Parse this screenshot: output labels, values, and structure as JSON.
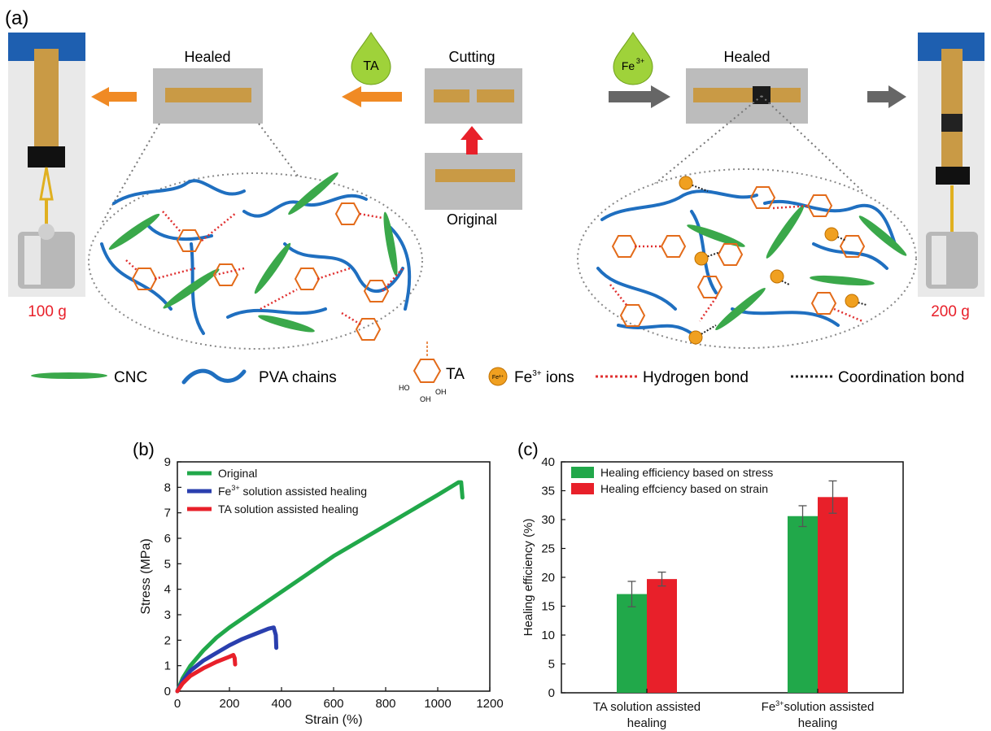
{
  "panels": {
    "a": {
      "label": "(a)",
      "healed_ta": "Healed",
      "cutting": "Cutting",
      "healed_fe": "Healed",
      "original": "Original",
      "drop_ta": "TA",
      "drop_fe": "Fe",
      "drop_fe_sup": "3+",
      "weight_left": "100 g",
      "weight_right": "200 g",
      "fe_ion_label": "Fe³⁺"
    },
    "legend": {
      "cnc": "CNC",
      "pva": "PVA chains",
      "ta": "TA",
      "fe_ions_base": "Fe",
      "fe_ions_sup": "3+",
      "fe_ions_rest": " ions",
      "hbond": "Hydrogen bond",
      "coord": "Coordination bond",
      "oh": "OH",
      "ho": "HO"
    },
    "b": {
      "label": "(b)"
    },
    "c": {
      "label": "(c)"
    }
  },
  "colors": {
    "green": "#21a84a",
    "blue": "#2a3fae",
    "red": "#e8202a",
    "orange_arrow": "#f08a24",
    "grey_arrow": "#666666",
    "red_arrow": "#e8202a",
    "pva_blue": "#1f6fc0",
    "cnc_green": "#3aa84a",
    "ta_orange": "#e36b1a",
    "hbond_red": "#e03030",
    "strip": "#c99a45",
    "photo_bg": "#bcbcbc"
  },
  "chart_data": [
    {
      "type": "line",
      "panel": "b",
      "xlabel": "Strain (%)",
      "ylabel": "Stress (MPa)",
      "xlim": [
        0,
        1200
      ],
      "ylim": [
        0,
        9
      ],
      "xticks": [
        0,
        200,
        400,
        600,
        800,
        1000,
        1200
      ],
      "yticks": [
        0,
        1,
        2,
        3,
        4,
        5,
        6,
        7,
        8,
        9
      ],
      "legend_position": "top-left",
      "series": [
        {
          "name": "Original",
          "color": "#21a84a",
          "x": [
            0,
            20,
            50,
            100,
            150,
            200,
            300,
            400,
            500,
            600,
            700,
            800,
            900,
            1000,
            1080,
            1090,
            1095
          ],
          "y": [
            0,
            0.5,
            1.0,
            1.6,
            2.1,
            2.5,
            3.2,
            3.9,
            4.6,
            5.3,
            5.9,
            6.5,
            7.1,
            7.7,
            8.2,
            8.2,
            7.6
          ]
        },
        {
          "name": "Fe3+ solution assisted healing",
          "label_base": "Fe",
          "label_sup": "3+",
          "label_rest": " solution assisted healing",
          "color": "#2a3fae",
          "x": [
            0,
            20,
            50,
            100,
            150,
            200,
            250,
            300,
            350,
            370,
            378,
            380
          ],
          "y": [
            0,
            0.4,
            0.8,
            1.2,
            1.5,
            1.8,
            2.05,
            2.25,
            2.45,
            2.5,
            2.2,
            1.7
          ]
        },
        {
          "name": "TA solution assisted healing",
          "color": "#e8202a",
          "x": [
            0,
            20,
            50,
            100,
            150,
            200,
            215,
            220,
            222
          ],
          "y": [
            0,
            0.3,
            0.6,
            0.9,
            1.15,
            1.35,
            1.42,
            1.3,
            1.05
          ]
        }
      ]
    },
    {
      "type": "bar",
      "panel": "c",
      "ylabel": "Healing efficiency (%)",
      "ylim": [
        0,
        40
      ],
      "yticks": [
        0,
        5,
        10,
        15,
        20,
        25,
        30,
        35,
        40
      ],
      "categories": [
        {
          "line1": "TA solution assisted",
          "line2": "healing"
        },
        {
          "line1_base": "Fe",
          "line1_sup": "3+",
          "line1_rest": "solution assisted",
          "line2": "healing"
        }
      ],
      "legend_position": "top-left",
      "series": [
        {
          "name": "Healing efficiency based on stress",
          "color": "#21a84a",
          "values": [
            17.1,
            30.6
          ],
          "errors": [
            2.2,
            1.8
          ]
        },
        {
          "name": "Healing effciency based on strain",
          "color": "#e8202a",
          "values": [
            19.7,
            33.9
          ],
          "errors": [
            1.2,
            2.8
          ]
        }
      ]
    }
  ]
}
